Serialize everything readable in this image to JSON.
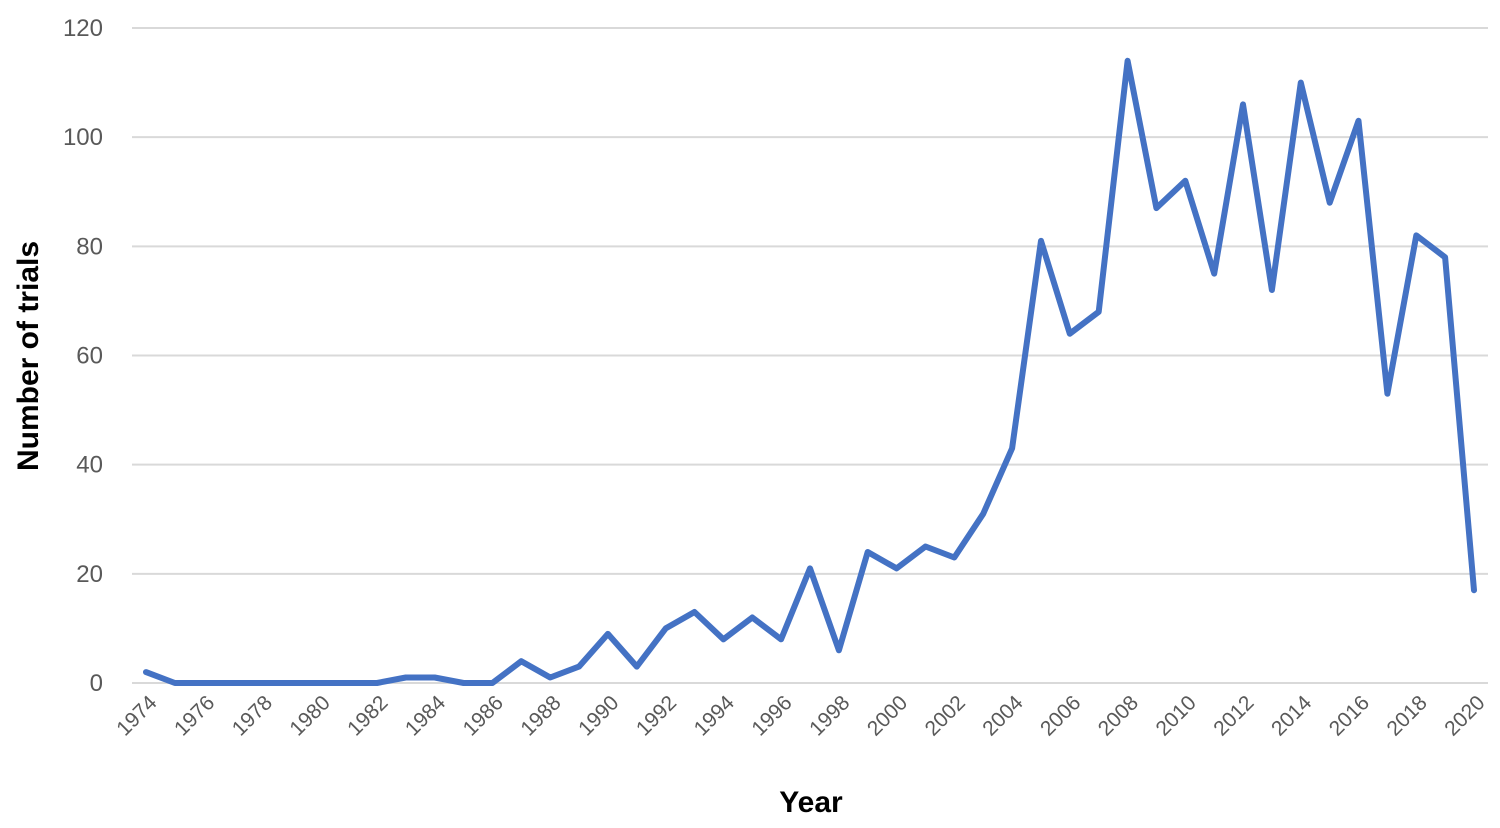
{
  "chart_data": {
    "type": "line",
    "xlabel": "Year",
    "ylabel": "Number of trials",
    "ylim": [
      0,
      120
    ],
    "yticks": [
      0,
      20,
      40,
      60,
      80,
      100,
      120
    ],
    "x_tick_labels": [
      "1974",
      "1976",
      "1978",
      "1980",
      "1982",
      "1984",
      "1986",
      "1988",
      "1990",
      "1992",
      "1994",
      "1996",
      "1998",
      "2000",
      "2002",
      "2004",
      "2006",
      "2008",
      "2010",
      "2012",
      "2014",
      "2016",
      "2018",
      "2020"
    ],
    "grid": true,
    "legend": "none",
    "line_color": "#4472c4",
    "x": [
      1974,
      1975,
      1976,
      1977,
      1978,
      1979,
      1980,
      1981,
      1982,
      1983,
      1984,
      1985,
      1986,
      1987,
      1988,
      1989,
      1990,
      1991,
      1992,
      1993,
      1994,
      1995,
      1996,
      1997,
      1998,
      1999,
      2000,
      2001,
      2002,
      2003,
      2004,
      2005,
      2006,
      2007,
      2008,
      2009,
      2010,
      2011,
      2012,
      2013,
      2014,
      2015,
      2016,
      2017,
      2018,
      2019,
      2020
    ],
    "series": [
      {
        "values": [
          2,
          0,
          0,
          0,
          0,
          0,
          0,
          0,
          0,
          1,
          1,
          0,
          0,
          4,
          1,
          3,
          9,
          3,
          10,
          13,
          8,
          12,
          8,
          21,
          6,
          24,
          21,
          25,
          23,
          31,
          43,
          81,
          64,
          68,
          114,
          87,
          92,
          75,
          106,
          72,
          110,
          88,
          103,
          53,
          82,
          78,
          17
        ]
      }
    ]
  }
}
